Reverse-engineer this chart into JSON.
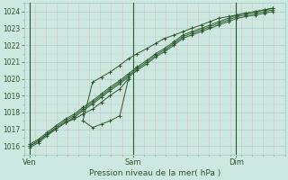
{
  "bg_color": "#cce8e0",
  "grid_color_major": "#aacec8",
  "grid_color_minor_y": "#bbdbd5",
  "grid_color_minor_x": "#e8b8b8",
  "line_color": "#2d5a2d",
  "text_color": "#2d5a2d",
  "ylim": [
    1015.5,
    1024.5
  ],
  "yticks": [
    1016,
    1017,
    1018,
    1019,
    1020,
    1021,
    1022,
    1023,
    1024
  ],
  "xlabel": "Pression niveau de la mer( hPa )",
  "xtick_labels": [
    "Ven",
    "Sam",
    "Dim"
  ],
  "xlim": [
    0,
    2.4
  ],
  "xtick_day_positions": [
    0.05,
    1.0,
    1.95
  ],
  "vline_positions": [
    0.05,
    1.0,
    1.95
  ],
  "total_hours": 57,
  "marker": "+",
  "marker_size": 3.5,
  "lw": 0.7,
  "comment": "3 lines: linear trend, a line that dips then rises (loop), and a nearly linear upper/lower bound",
  "line_main_x": [
    0.05,
    0.13,
    0.21,
    0.29,
    0.38,
    0.46,
    0.54,
    0.63,
    0.71,
    0.79,
    0.88,
    0.96,
    1.04,
    1.13,
    1.21,
    1.29,
    1.38,
    1.46,
    1.54,
    1.63,
    1.71,
    1.79,
    1.88,
    1.96,
    2.04,
    2.13,
    2.21,
    2.29
  ],
  "line_main_y": [
    1016.0,
    1016.3,
    1016.7,
    1017.1,
    1017.5,
    1017.8,
    1018.2,
    1018.6,
    1019.0,
    1019.4,
    1019.8,
    1020.2,
    1020.6,
    1021.0,
    1021.4,
    1021.7,
    1022.1,
    1022.5,
    1022.7,
    1022.9,
    1023.1,
    1023.3,
    1023.5,
    1023.7,
    1023.8,
    1023.9,
    1024.0,
    1024.1
  ],
  "line_upper_x": [
    0.05,
    0.13,
    0.21,
    0.29,
    0.38,
    0.46,
    0.54,
    0.63,
    0.71,
    0.79,
    0.88,
    0.96,
    1.04,
    1.13,
    1.21,
    1.29,
    1.38,
    1.46,
    1.54,
    1.63,
    1.71,
    1.79,
    1.88,
    1.96,
    2.04,
    2.13,
    2.21,
    2.29
  ],
  "line_upper_y": [
    1016.1,
    1016.4,
    1016.8,
    1017.2,
    1017.6,
    1017.9,
    1018.3,
    1018.7,
    1019.1,
    1019.5,
    1019.9,
    1020.3,
    1020.7,
    1021.1,
    1021.5,
    1021.8,
    1022.2,
    1022.6,
    1022.8,
    1023.0,
    1023.2,
    1023.4,
    1023.6,
    1023.8,
    1023.9,
    1024.0,
    1024.1,
    1024.2
  ],
  "line_lower_x": [
    0.05,
    0.13,
    0.21,
    0.29,
    0.38,
    0.46,
    0.54,
    0.63,
    0.71,
    0.79,
    0.88,
    0.96,
    1.04,
    1.13,
    1.21,
    1.29,
    1.38,
    1.46,
    1.54,
    1.63,
    1.71,
    1.79,
    1.88,
    1.96,
    2.04,
    2.13,
    2.21,
    2.29
  ],
  "line_lower_y": [
    1015.9,
    1016.2,
    1016.6,
    1017.0,
    1017.4,
    1017.7,
    1018.1,
    1018.5,
    1018.9,
    1019.3,
    1019.7,
    1020.1,
    1020.5,
    1020.9,
    1021.3,
    1021.6,
    1022.0,
    1022.4,
    1022.6,
    1022.8,
    1023.0,
    1023.2,
    1023.4,
    1023.6,
    1023.7,
    1023.8,
    1023.9,
    1024.0
  ],
  "line_loop_x": [
    0.05,
    0.13,
    0.21,
    0.29,
    0.38,
    0.46,
    0.54,
    0.63,
    0.71,
    0.79,
    0.88,
    0.96,
    0.88,
    0.79,
    0.71,
    0.63,
    0.54,
    0.63,
    0.71,
    0.79,
    0.88,
    0.96,
    1.04,
    1.13,
    1.21,
    1.29,
    1.38,
    1.46,
    1.54,
    1.63,
    1.71,
    1.79,
    1.88,
    1.96,
    2.04,
    2.13,
    2.21,
    2.29
  ],
  "line_loop_y": [
    1016.0,
    1016.3,
    1016.7,
    1017.0,
    1017.4,
    1017.6,
    1017.9,
    1018.2,
    1018.6,
    1019.0,
    1019.4,
    1020.0,
    1017.8,
    1017.5,
    1017.3,
    1017.1,
    1017.5,
    1019.8,
    1020.1,
    1020.4,
    1020.8,
    1021.2,
    1021.5,
    1021.8,
    1022.1,
    1022.4,
    1022.6,
    1022.8,
    1023.0,
    1023.2,
    1023.4,
    1023.6,
    1023.7,
    1023.8,
    1023.9,
    1024.0,
    1024.1,
    1024.2
  ]
}
